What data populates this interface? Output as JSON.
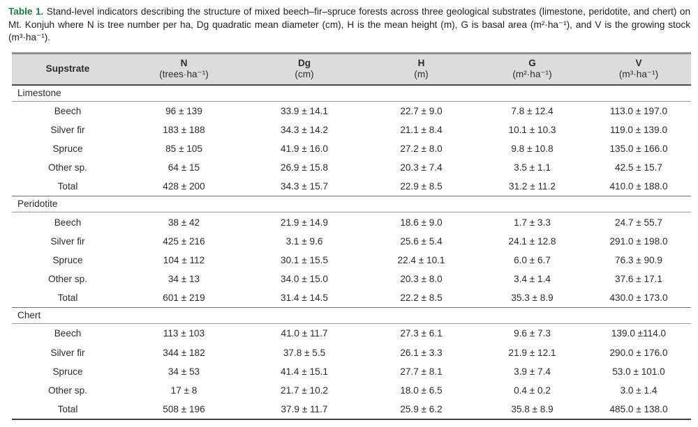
{
  "caption": {
    "label": "Table 1.",
    "text": "Stand-level indicators describing the structure of mixed beech–fir–spruce forests across three geological substrates (limestone, peridotite, and chert) on Mt. Konjuh where N is tree number per ha, Dg quadratic mean diameter (cm), H is the mean height (m), G is basal area (m²·ha⁻¹), and V is the growing stock (m³·ha⁻¹)."
  },
  "colors": {
    "caption_green": "#1d7d3f",
    "header_bg": "#dcdcdc",
    "rule_dark": "#474747",
    "rule_light": "#9a9a9a"
  },
  "table": {
    "columns": [
      {
        "name": "Supstrate",
        "unit": ""
      },
      {
        "name": "N",
        "unit": "(trees·ha⁻¹)"
      },
      {
        "name": "Dg",
        "unit": "(cm)"
      },
      {
        "name": "H",
        "unit": "(m)"
      },
      {
        "name": "G",
        "unit": "(m²·ha⁻¹)"
      },
      {
        "name": "V",
        "unit": "(m³·ha⁻¹)"
      }
    ],
    "sections": [
      {
        "name": "Limestone",
        "rows": [
          [
            "Beech",
            "96 ± 139",
            "33.9 ± 14.1",
            "22.7 ± 9.0",
            "7.8 ± 12.4",
            "113.0 ± 197.0"
          ],
          [
            "Silver fir",
            "183 ± 188",
            "34.3 ± 14.2",
            "21.1 ± 8.4",
            "10.1 ± 10.3",
            "119.0 ± 139.0"
          ],
          [
            "Spruce",
            "85 ± 105",
            "41.9 ± 16.0",
            "27.2 ± 8.0",
            "9.8 ± 10.8",
            "135.0 ± 166.0"
          ],
          [
            "Other sp.",
            "64 ± 15",
            "26.9 ± 15.8",
            "20.3 ± 7.4",
            "3.5 ± 1.1",
            "42.5 ± 15.7"
          ],
          [
            "Total",
            "428 ± 200",
            "34.3 ± 15.7",
            "22.9 ± 8.5",
            "31.2 ± 11.2",
            "410.0 ± 188.0"
          ]
        ]
      },
      {
        "name": "Peridotite",
        "rows": [
          [
            "Beech",
            "38 ± 42",
            "21.9 ± 14.9",
            "18.6 ± 9.0",
            "1.7 ± 3.3",
            "24.7 ± 55.7"
          ],
          [
            "Silver fir",
            "425 ± 216",
            "3.1 ± 9.6",
            "25.6 ± 5.4",
            "24.1 ± 12.8",
            "291.0 ± 198.0"
          ],
          [
            "Spruce",
            "104 ± 112",
            "30.1 ± 15.5",
            "22.4 ± 10.1",
            "6.0 ± 6.7",
            "76.3 ± 90.9"
          ],
          [
            "Other sp.",
            "34 ± 13",
            "34.0 ± 15.0",
            "20.3 ± 8.0",
            "3.4 ± 1.4",
            "37.6 ± 17.1"
          ],
          [
            "Total",
            "601 ± 219",
            "31.4 ± 14.5",
            "22.2 ± 8.5",
            "35.3 ± 8.9",
            "430.0 ± 173.0"
          ]
        ]
      },
      {
        "name": "Chert",
        "rows": [
          [
            "Beech",
            "113 ± 103",
            "41.0 ± 11.7",
            "27.3 ± 6.1",
            "9.6 ± 7.3",
            "139.0 ±114.0"
          ],
          [
            "Silver fir",
            "344 ± 182",
            "37.8 ± 5.5",
            "26.1 ± 3.3",
            "21.9 ± 12.1",
            "290.0 ± 176.0"
          ],
          [
            "Spruce",
            "34 ± 53",
            "41.4 ± 15.1",
            "27.7 ± 8.1",
            "3.9 ± 7.4",
            "53.0 ± 101.0"
          ],
          [
            "Other sp.",
            "17 ± 8",
            "21.7 ± 10.2",
            "18.0 ± 6.5",
            "0.4 ± 0.2",
            "3.0 ± 1.4"
          ],
          [
            "Total",
            "508 ± 196",
            "37.9 ± 11.7",
            "25.9 ± 6.2",
            "35.8 ± 8.9",
            "485.0 ± 138.0"
          ]
        ]
      }
    ]
  }
}
